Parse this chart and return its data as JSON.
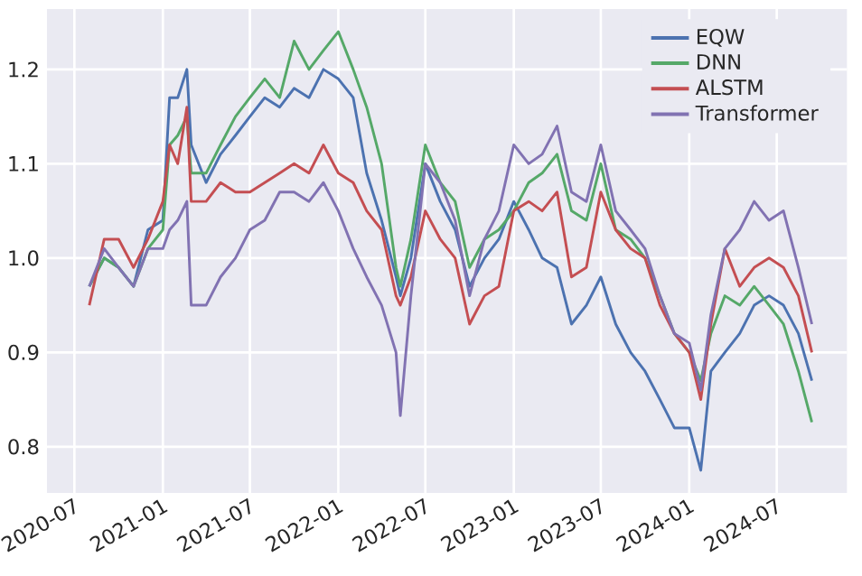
{
  "chart_data": {
    "type": "line",
    "x": [
      "2020-08-01",
      "2020-09-01",
      "2020-10-01",
      "2020-11-01",
      "2020-12-01",
      "2021-01-01",
      "2021-01-15",
      "2021-02-01",
      "2021-02-20",
      "2021-03-01",
      "2021-04-01",
      "2021-05-01",
      "2021-06-01",
      "2021-07-01",
      "2021-08-01",
      "2021-09-01",
      "2021-10-01",
      "2021-11-01",
      "2021-12-01",
      "2022-01-01",
      "2022-02-01",
      "2022-03-01",
      "2022-04-01",
      "2022-05-01",
      "2022-05-10",
      "2022-06-01",
      "2022-07-01",
      "2022-08-01",
      "2022-09-01",
      "2022-10-01",
      "2022-11-01",
      "2022-12-01",
      "2023-01-01",
      "2023-02-01",
      "2023-03-01",
      "2023-04-01",
      "2023-05-01",
      "2023-06-01",
      "2023-07-01",
      "2023-08-01",
      "2023-09-01",
      "2023-10-01",
      "2023-11-01",
      "2023-12-01",
      "2024-01-01",
      "2024-01-25",
      "2024-02-15",
      "2024-03-15",
      "2024-04-15",
      "2024-05-15",
      "2024-06-15",
      "2024-07-15",
      "2024-08-15",
      "2024-09-12"
    ],
    "series": [
      {
        "name": "EQW",
        "color": "#4c72b0",
        "values": [
          0.97,
          1.0,
          0.99,
          0.97,
          1.03,
          1.04,
          1.17,
          1.17,
          1.2,
          1.12,
          1.08,
          1.11,
          1.13,
          1.15,
          1.17,
          1.16,
          1.18,
          1.17,
          1.2,
          1.19,
          1.17,
          1.09,
          1.04,
          0.98,
          0.96,
          1.0,
          1.1,
          1.06,
          1.03,
          0.97,
          1.0,
          1.02,
          1.06,
          1.03,
          1.0,
          0.99,
          0.93,
          0.95,
          0.98,
          0.93,
          0.9,
          0.88,
          0.85,
          0.82,
          0.82,
          0.775,
          0.88,
          0.9,
          0.92,
          0.95,
          0.96,
          0.95,
          0.92,
          0.87
        ]
      },
      {
        "name": "DNN",
        "color": "#55a868",
        "values": [
          0.97,
          1.0,
          0.99,
          0.97,
          1.01,
          1.03,
          1.12,
          1.13,
          1.15,
          1.09,
          1.09,
          1.12,
          1.15,
          1.17,
          1.19,
          1.17,
          1.23,
          1.2,
          1.22,
          1.24,
          1.2,
          1.16,
          1.1,
          0.99,
          0.97,
          1.02,
          1.12,
          1.08,
          1.06,
          0.99,
          1.02,
          1.03,
          1.05,
          1.08,
          1.09,
          1.11,
          1.05,
          1.04,
          1.1,
          1.03,
          1.02,
          1.0,
          0.96,
          0.92,
          0.9,
          0.87,
          0.92,
          0.96,
          0.95,
          0.97,
          0.95,
          0.93,
          0.88,
          0.826
        ]
      },
      {
        "name": "ALSTM",
        "color": "#c44e52",
        "values": [
          0.95,
          1.02,
          1.02,
          0.99,
          1.02,
          1.06,
          1.12,
          1.1,
          1.16,
          1.06,
          1.06,
          1.08,
          1.07,
          1.07,
          1.08,
          1.09,
          1.1,
          1.09,
          1.12,
          1.09,
          1.08,
          1.05,
          1.03,
          0.96,
          0.95,
          0.98,
          1.05,
          1.02,
          1.0,
          0.93,
          0.96,
          0.97,
          1.05,
          1.06,
          1.05,
          1.07,
          0.98,
          0.99,
          1.07,
          1.03,
          1.01,
          1.0,
          0.95,
          0.92,
          0.9,
          0.85,
          0.93,
          1.01,
          0.97,
          0.99,
          1.0,
          0.99,
          0.96,
          0.9
        ]
      },
      {
        "name": "Transformer",
        "color": "#8172b2",
        "values": [
          0.97,
          1.01,
          0.99,
          0.97,
          1.01,
          1.01,
          1.03,
          1.04,
          1.06,
          0.95,
          0.95,
          0.98,
          1.0,
          1.03,
          1.04,
          1.07,
          1.07,
          1.06,
          1.08,
          1.05,
          1.01,
          0.98,
          0.95,
          0.9,
          0.833,
          0.96,
          1.1,
          1.08,
          1.04,
          0.96,
          1.02,
          1.05,
          1.12,
          1.1,
          1.11,
          1.14,
          1.07,
          1.06,
          1.12,
          1.05,
          1.03,
          1.01,
          0.96,
          0.92,
          0.91,
          0.86,
          0.94,
          1.01,
          1.03,
          1.06,
          1.04,
          1.05,
          0.99,
          0.93
        ]
      }
    ],
    "xlim": [
      "2020-05-05",
      "2024-11-24"
    ],
    "xticks": [
      "2020-07",
      "2021-01",
      "2021-07",
      "2022-01",
      "2022-07",
      "2023-01",
      "2023-07",
      "2024-01",
      "2024-07"
    ],
    "ylim": [
      0.751,
      1.264
    ],
    "yticks": [
      {
        "value": 0.8,
        "label": "0.8"
      },
      {
        "value": 0.9,
        "label": "0.9"
      },
      {
        "value": 1.0,
        "label": "1.0"
      },
      {
        "value": 1.1,
        "label": "1.1"
      },
      {
        "value": 1.2,
        "label": "1.2"
      }
    ],
    "grid": true,
    "legend": "top right"
  }
}
